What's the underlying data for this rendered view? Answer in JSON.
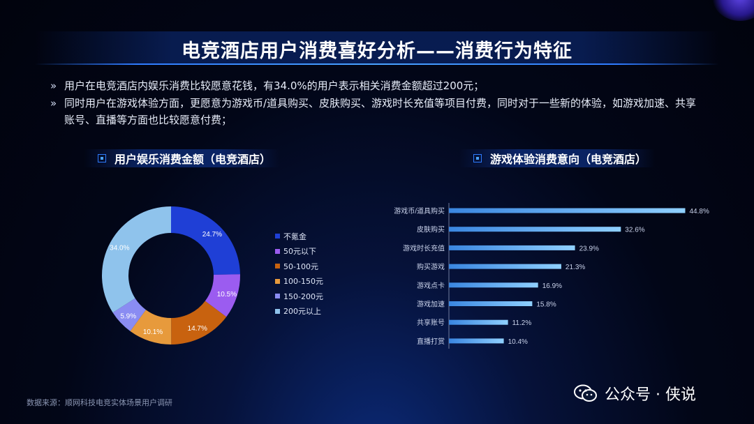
{
  "title": "电竞酒店用户消费喜好分析——消费行为特征",
  "bullets": [
    "用户在电竞酒店内娱乐消费比较愿意花钱，有34.0%的用户表示相关消费金额超过200元；",
    "同时用户在游戏体验方面，更愿意为游戏币/道具购买、皮肤购买、游戏时长充值等项目付费，同时对于一些新的体验，如游戏加速、共享账号、直播等方面也比较愿意付费；"
  ],
  "bullet_mark": "»",
  "source": "数据来源：顺网科技电竞实体场景用户调研",
  "watermark": "公众号 · 侠说",
  "chart_data": [
    {
      "type": "pie",
      "title": "用户娱乐消费金额（电竞酒店）",
      "slices": [
        {
          "label": "不氪金",
          "value": 24.7,
          "display": "24.7%",
          "color": "#1f3fd6"
        },
        {
          "label": "50元以下",
          "value": 10.5,
          "display": "10.5%",
          "color": "#9b5cf0"
        },
        {
          "label": "50-100元",
          "value": 14.7,
          "display": "14.7%",
          "color": "#c8620f"
        },
        {
          "label": "100-150元",
          "value": 10.1,
          "display": "10.1%",
          "color": "#e79a3c"
        },
        {
          "label": "150-200元",
          "value": 5.9,
          "display": "5.9%",
          "color": "#8a8cf2"
        },
        {
          "label": "200元以上",
          "value": 34.0,
          "display": "34.0%",
          "color": "#8fc3ec"
        }
      ]
    },
    {
      "type": "bar",
      "orientation": "horizontal",
      "title": "游戏体验消费意向（电竞酒店）",
      "categories": [
        "游戏币/道具购买",
        "皮肤购买",
        "游戏时长充值",
        "购买游戏",
        "游戏点卡",
        "游戏加速",
        "共享账号",
        "直播打赏"
      ],
      "values": [
        44.8,
        32.6,
        23.9,
        21.3,
        16.9,
        15.8,
        11.2,
        10.4
      ],
      "value_labels": [
        "44.8%",
        "32.6%",
        "23.9%",
        "21.3%",
        "16.9%",
        "15.8%",
        "11.2%",
        "10.4%"
      ],
      "xlim": [
        0,
        50
      ],
      "bar_color": "#5eb2f0"
    }
  ]
}
